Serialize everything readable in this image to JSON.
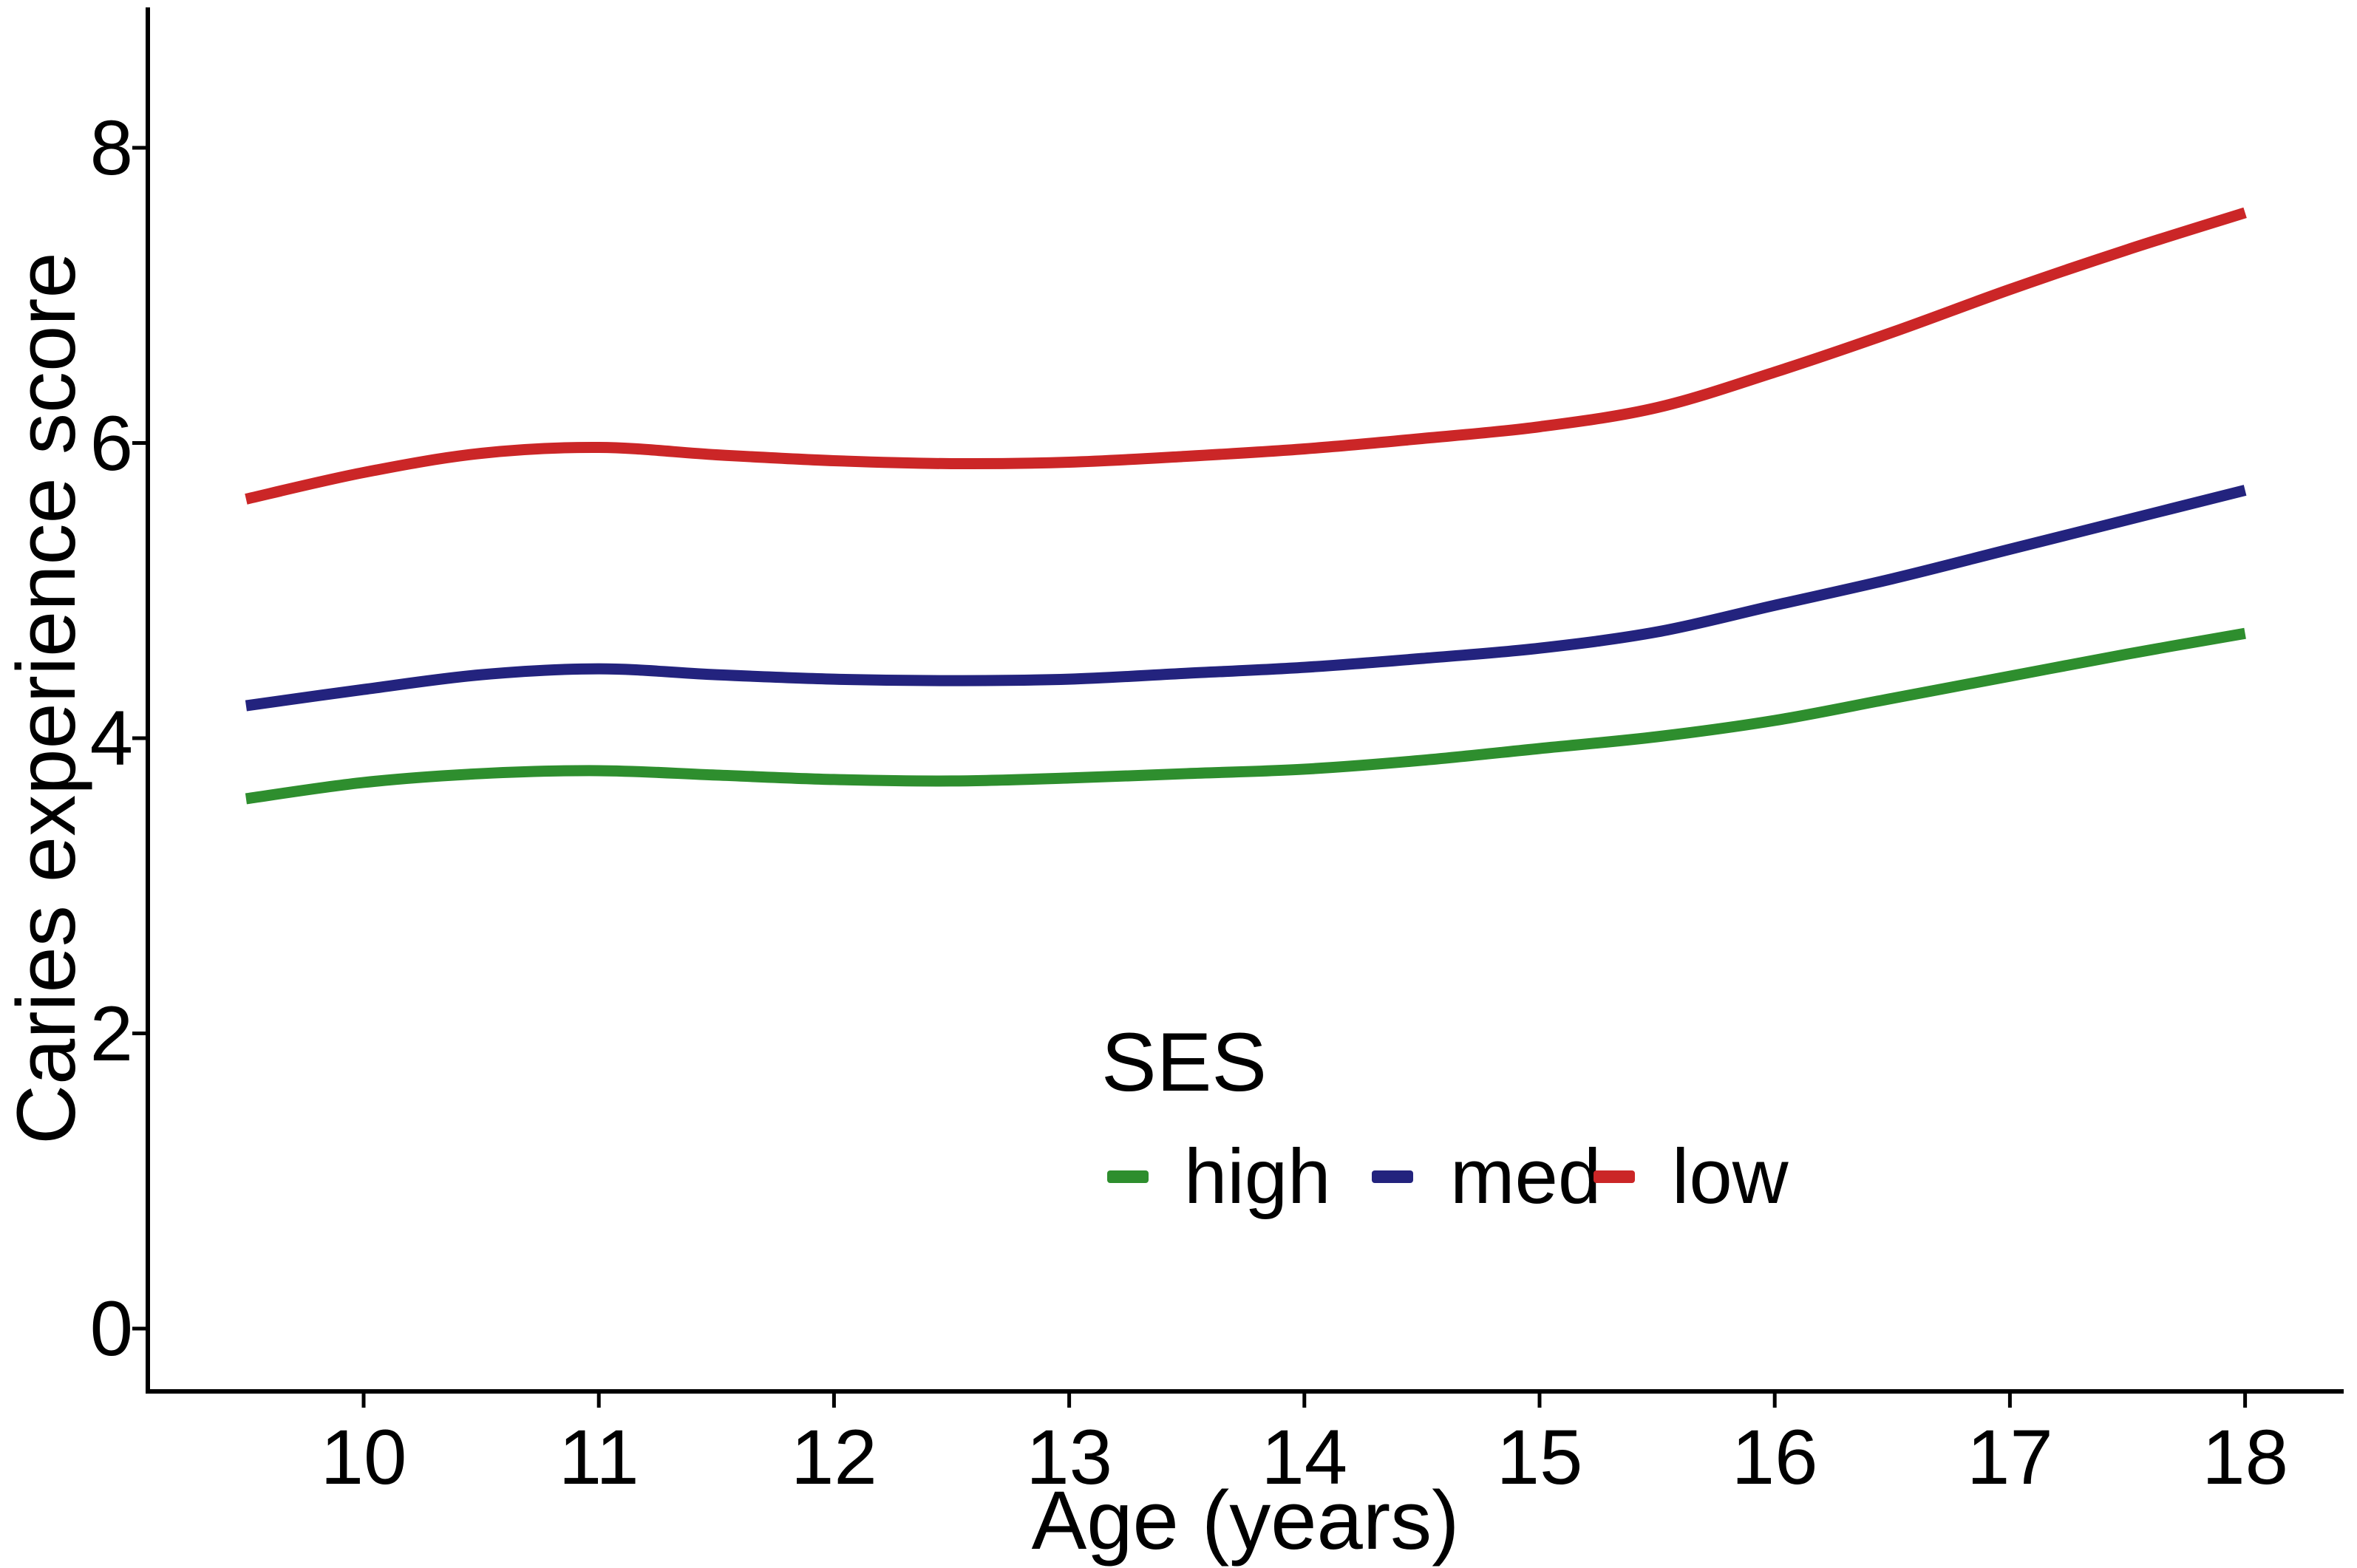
{
  "chart_data": {
    "type": "line",
    "title": "",
    "xlabel": "Age (years)",
    "ylabel": "Caries experience score",
    "x_ticks": [
      10,
      11,
      12,
      13,
      14,
      15,
      16,
      17,
      18
    ],
    "y_ticks": [
      0,
      2,
      4,
      6,
      8
    ],
    "xlim": [
      9.08,
      18.42
    ],
    "ylim": [
      -0.43,
      8.95
    ],
    "grid": false,
    "background": "#ffffff",
    "axis_color": "#000000",
    "legend": {
      "title": "SES",
      "position": "inside-bottom-center"
    },
    "x": [
      9.5,
      10,
      10.5,
      11,
      11.5,
      12,
      12.5,
      13,
      13.5,
      14,
      14.5,
      15,
      15.5,
      16,
      16.5,
      17,
      17.5,
      18
    ],
    "series": [
      {
        "name": "high",
        "color": "#2E8E2E",
        "values": [
          3.59,
          3.7,
          3.76,
          3.78,
          3.75,
          3.72,
          3.71,
          3.73,
          3.76,
          3.79,
          3.85,
          3.93,
          4.01,
          4.12,
          4.27,
          4.42,
          4.57,
          4.71
        ]
      },
      {
        "name": "med",
        "color": "#23237E",
        "values": [
          4.22,
          4.33,
          4.43,
          4.47,
          4.43,
          4.4,
          4.39,
          4.4,
          4.44,
          4.48,
          4.54,
          4.61,
          4.72,
          4.9,
          5.08,
          5.28,
          5.48,
          5.68
        ]
      },
      {
        "name": "low",
        "color": "#CB2627",
        "values": [
          5.62,
          5.8,
          5.93,
          5.97,
          5.92,
          5.88,
          5.86,
          5.87,
          5.91,
          5.96,
          6.03,
          6.11,
          6.24,
          6.48,
          6.75,
          7.04,
          7.31,
          7.56
        ]
      }
    ]
  }
}
